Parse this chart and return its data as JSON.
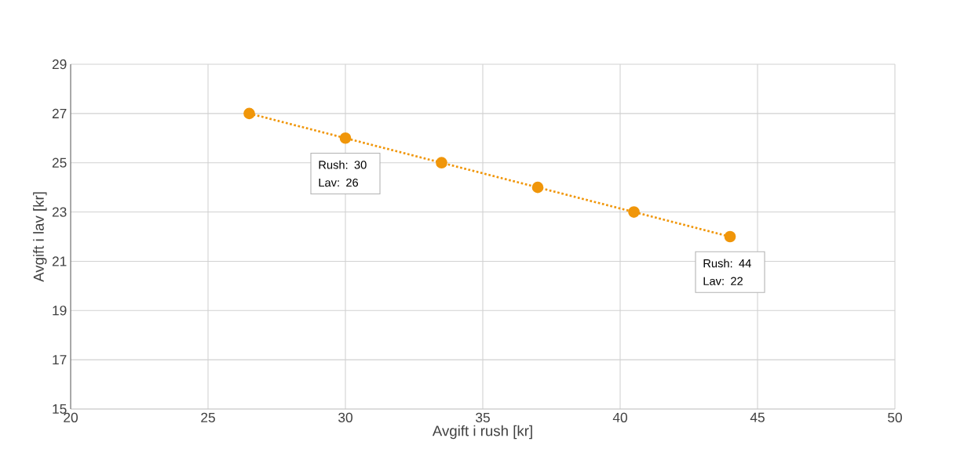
{
  "chart_data": {
    "type": "line",
    "xlabel": "Avgift i rush [kr]",
    "ylabel": "Avgift i lav [kr]",
    "x": [
      26.5,
      30,
      33.5,
      37,
      40.5,
      44
    ],
    "series": [
      {
        "color": "#f0960a",
        "values": [
          27,
          26,
          25,
          24,
          23,
          22
        ]
      }
    ],
    "xlim": [
      20,
      50
    ],
    "xticks": [
      20,
      25,
      30,
      35,
      40,
      45,
      50
    ],
    "ylim": [
      15,
      29
    ],
    "yticks": [
      15,
      17,
      19,
      21,
      23,
      25,
      27,
      29
    ],
    "grid": true,
    "marker": "circle",
    "line_style": "dotted",
    "annotations": [
      {
        "text": "Rush: 30 Lav: 26",
        "x": 30,
        "y": 26
      },
      {
        "text": "Rush: 44 Lav: 22",
        "x": 44,
        "y": 22
      }
    ]
  }
}
